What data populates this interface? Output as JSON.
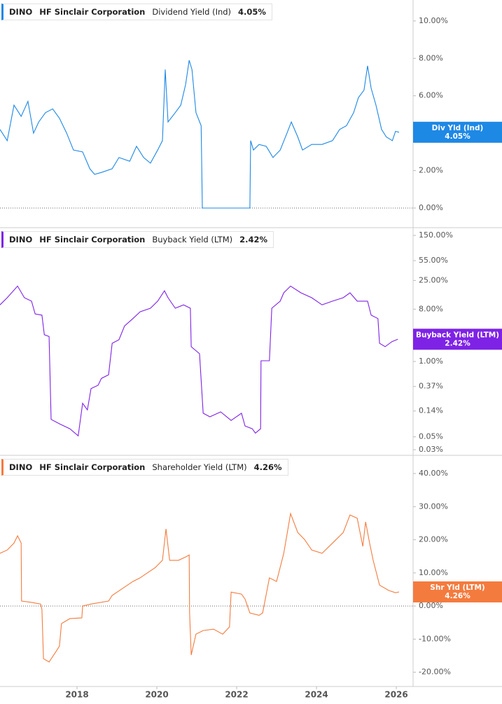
{
  "chart_data": [
    {
      "type": "line",
      "ticker": "DINO",
      "company": "HF Sinclair Corporation",
      "title": "Dividend Yield (Ind)",
      "current": {
        "value": 4.05,
        "label": "4.05%"
      },
      "x": [
        2016.07,
        2016.25,
        2016.42,
        2016.6,
        2016.77,
        2016.91,
        2017.04,
        2017.21,
        2017.39,
        2017.56,
        2017.74,
        2017.91,
        2018.14,
        2018.32,
        2018.44,
        2018.61,
        2018.88,
        2019.05,
        2019.32,
        2019.49,
        2019.67,
        2019.84,
        2020.02,
        2020.14,
        2020.21,
        2020.28,
        2020.46,
        2020.6,
        2020.72,
        2020.81,
        2020.88,
        2020.98,
        2021.11,
        2021.14,
        2022.33,
        2022.35,
        2022.42,
        2022.56,
        2022.74,
        2022.91,
        2023.09,
        2023.26,
        2023.37,
        2023.53,
        2023.65,
        2023.88,
        2024.14,
        2024.4,
        2024.58,
        2024.75,
        2024.93,
        2025.05,
        2025.19,
        2025.28,
        2025.37,
        2025.49,
        2025.63,
        2025.75,
        2025.9,
        2025.98,
        2026.07
      ],
      "series": [
        {
          "name": "Div Yld (Ind)",
          "color": "#1e88e5",
          "values": [
            4.2,
            3.6,
            5.5,
            4.9,
            5.7,
            4.0,
            4.6,
            5.1,
            5.3,
            4.8,
            4.0,
            3.1,
            3.0,
            2.1,
            1.8,
            1.9,
            2.1,
            2.7,
            2.5,
            3.3,
            2.7,
            2.4,
            3.1,
            3.6,
            7.4,
            4.6,
            5.1,
            5.5,
            6.6,
            7.9,
            7.4,
            5.1,
            4.4,
            0,
            0,
            3.6,
            3.1,
            3.4,
            3.3,
            2.7,
            3.1,
            4.0,
            4.6,
            3.8,
            3.1,
            3.4,
            3.4,
            3.6,
            4.2,
            4.4,
            5.1,
            5.9,
            6.3,
            7.6,
            6.4,
            5.5,
            4.2,
            3.8,
            3.6,
            4.1,
            4.05
          ]
        }
      ],
      "xlim": [
        2016.07,
        2026.42
      ],
      "ylim": [
        -1.05,
        11.12
      ],
      "log": false,
      "zero_line": true,
      "yticks": [
        {
          "value": 0,
          "label": "0.00%"
        },
        {
          "value": 2,
          "label": "2.00%"
        },
        {
          "value": 4,
          "label": "4.00%"
        },
        {
          "value": 6,
          "label": "6.00%"
        },
        {
          "value": 8,
          "label": "8.00%"
        },
        {
          "value": 10,
          "label": "10.00%"
        }
      ]
    },
    {
      "type": "line",
      "ticker": "DINO",
      "company": "HF Sinclair Corporation",
      "title": "Buyback Yield (LTM)",
      "current": {
        "value": 2.42,
        "label": "2.42%"
      },
      "x": [
        2016.07,
        2016.25,
        2016.51,
        2016.68,
        2016.86,
        2016.95,
        2017.12,
        2017.18,
        2017.3,
        2017.35,
        2017.56,
        2017.82,
        2018.03,
        2018.14,
        2018.26,
        2018.35,
        2018.53,
        2018.61,
        2018.79,
        2018.88,
        2019.05,
        2019.19,
        2019.4,
        2019.58,
        2019.84,
        2020.02,
        2020.19,
        2020.28,
        2020.46,
        2020.67,
        2020.84,
        2020.86,
        2021.07,
        2021.16,
        2021.33,
        2021.6,
        2021.86,
        2022.12,
        2022.21,
        2022.39,
        2022.47,
        2022.6,
        2022.61,
        2022.82,
        2022.88,
        2023.09,
        2023.18,
        2023.35,
        2023.61,
        2023.88,
        2024.14,
        2024.4,
        2024.67,
        2024.84,
        2025.02,
        2025.28,
        2025.37,
        2025.54,
        2025.58,
        2025.72,
        2025.89,
        2026.04
      ],
      "series": [
        {
          "name": "Buyback Yield (LTM)",
          "color": "#7e22e6",
          "values": [
            9.5,
            12.6,
            20,
            12.6,
            11,
            6.6,
            6.3,
            2.9,
            2.7,
            0.1,
            0.084,
            0.069,
            0.052,
            0.19,
            0.146,
            0.34,
            0.39,
            0.51,
            0.59,
            2.06,
            2.37,
            4.1,
            5.5,
            7.2,
            8.3,
            11,
            16.6,
            12.6,
            8.3,
            9.5,
            8.3,
            1.8,
            1.36,
            0.128,
            0.111,
            0.135,
            0.096,
            0.128,
            0.077,
            0.069,
            0.058,
            0.069,
            1.03,
            1.03,
            8.3,
            11,
            15.3,
            20,
            15.3,
            12.6,
            9.5,
            11,
            12.6,
            15.3,
            11,
            11,
            6.3,
            5.5,
            2.06,
            1.8,
            2.2,
            2.42
          ]
        }
      ],
      "xlim": [
        2016.07,
        2026.42
      ],
      "ylim": [
        0.024,
        204
      ],
      "log": true,
      "zero_line": false,
      "yticks": [
        {
          "value": 0.03,
          "label": "0.03%"
        },
        {
          "value": 0.05,
          "label": "0.05%"
        },
        {
          "value": 0.14,
          "label": "0.14%"
        },
        {
          "value": 0.37,
          "label": "0.37%"
        },
        {
          "value": 1,
          "label": "1.00%"
        },
        {
          "value": 8,
          "label": "8.00%"
        },
        {
          "value": 25,
          "label": "25.00%"
        },
        {
          "value": 55,
          "label": "55.00%"
        },
        {
          "value": 150,
          "label": "150.00%"
        }
      ]
    },
    {
      "type": "line",
      "ticker": "DINO",
      "company": "HF Sinclair Corporation",
      "title": "Shareholder Yield (LTM)",
      "current": {
        "value": 4.26,
        "label": "4.26%"
      },
      "x": [
        2016.07,
        2016.25,
        2016.42,
        2016.51,
        2016.6,
        2016.61,
        2016.86,
        2017.09,
        2017.12,
        2017.16,
        2017.3,
        2017.47,
        2017.56,
        2017.61,
        2017.82,
        2018.12,
        2018.14,
        2018.35,
        2018.79,
        2018.88,
        2019.14,
        2019.4,
        2019.58,
        2019.75,
        2019.96,
        2020.14,
        2020.23,
        2020.32,
        2020.54,
        2020.72,
        2020.81,
        2020.82,
        2020.86,
        2020.98,
        2021.16,
        2021.42,
        2021.65,
        2021.82,
        2021.86,
        2022.12,
        2022.21,
        2022.33,
        2022.56,
        2022.65,
        2022.82,
        2023.0,
        2023.18,
        2023.35,
        2023.53,
        2023.7,
        2023.88,
        2024.14,
        2024.4,
        2024.67,
        2024.84,
        2025.02,
        2025.16,
        2025.23,
        2025.33,
        2025.42,
        2025.58,
        2025.81,
        2025.98,
        2026.07
      ],
      "series": [
        {
          "name": "Shr Yld (LTM)",
          "color": "#f47b3e",
          "values": [
            15.9,
            16.9,
            19.0,
            21.2,
            19.0,
            1.5,
            1.1,
            0.6,
            -1.1,
            -15.9,
            -16.9,
            -13.8,
            -12.1,
            -5.3,
            -3.8,
            -3.6,
            0,
            0.6,
            1.5,
            3.2,
            5.3,
            7.4,
            8.5,
            9.9,
            11.6,
            13.8,
            23.3,
            13.8,
            13.8,
            14.8,
            15.4,
            -2.1,
            -14.8,
            -8.5,
            -7.4,
            -7.0,
            -8.5,
            -6.3,
            4.2,
            3.6,
            2.1,
            -2.1,
            -2.8,
            -2.1,
            8.5,
            7.4,
            15.9,
            27.9,
            22.2,
            20.1,
            16.9,
            15.9,
            19.0,
            22.2,
            27.5,
            26.5,
            18.0,
            25.4,
            19.0,
            13.8,
            6.3,
            4.7,
            4.0,
            4.26
          ]
        }
      ],
      "xlim": [
        2016.07,
        2026.42
      ],
      "ylim": [
        -24.3,
        45.5
      ],
      "log": false,
      "zero_line": true,
      "yticks": [
        {
          "value": -20,
          "label": "-20.00%"
        },
        {
          "value": -10,
          "label": "-10.00%"
        },
        {
          "value": 0,
          "label": "0.00%"
        },
        {
          "value": 10,
          "label": "10.00%"
        },
        {
          "value": 20,
          "label": "20.00%"
        },
        {
          "value": 30,
          "label": "30.00%"
        },
        {
          "value": 40,
          "label": "40.00%"
        }
      ],
      "xticks": [
        2018,
        2020,
        2022,
        2024,
        2026
      ]
    }
  ]
}
